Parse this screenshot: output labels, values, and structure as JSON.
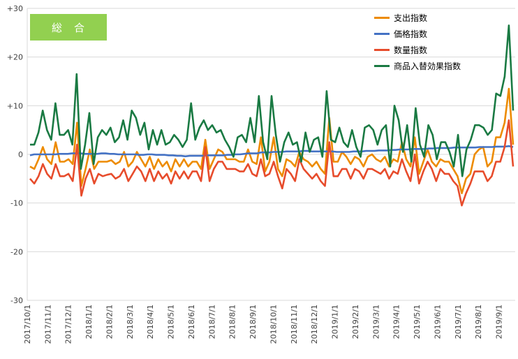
{
  "chart_data": {
    "type": "line",
    "title": "総　合",
    "ylim": [
      -30,
      30
    ],
    "yticks": [
      30,
      20,
      10,
      0,
      -10,
      -20,
      -30
    ],
    "ytick_labels": [
      "+30",
      "+20",
      "+10",
      "0",
      "-10",
      "-20",
      "-30"
    ],
    "xtick_labels": [
      "2017/10/1",
      "2017/11/1",
      "2017/12/1",
      "2018/1/1",
      "2018/2/1",
      "2018/3/1",
      "2018/4/1",
      "2018/5/1",
      "2018/6/1",
      "2018/7/1",
      "2018/8/1",
      "2018/9/1",
      "2018/10/1",
      "2018/11/1",
      "2018/12/1",
      "2019/1/1",
      "2019/2/1",
      "2019/3/1",
      "2019/4/1",
      "2019/5/1",
      "2019/6/1",
      "2019/7/1",
      "2019/8/1",
      "2019/9/1"
    ],
    "grid": "horizontal",
    "legend_position": "top-right",
    "series": [
      {
        "name": "支出指数",
        "color": "#ed8b00",
        "values": [
          -2.5,
          -3,
          -1,
          1.5,
          -1,
          -2,
          2.5,
          -1.5,
          -1.5,
          -1,
          -2,
          6.5,
          -6.5,
          -3,
          1,
          -3,
          -1.5,
          -1.5,
          -1.5,
          -1.2,
          -2,
          -1.5,
          0.5,
          -2.5,
          -1.5,
          0.5,
          -1,
          -2.5,
          -0.5,
          -3,
          -1,
          -2.5,
          -1.5,
          -3.5,
          -1,
          -2.5,
          -1,
          -2.5,
          -1.5,
          -1.5,
          -3,
          3,
          -3,
          -1,
          1,
          0.5,
          -1,
          -1,
          -1,
          -1.5,
          -1.5,
          1,
          -1.5,
          -2,
          3.5,
          -3.5,
          -1.5,
          3.5,
          -3,
          -4.5,
          -1,
          -1.5,
          -2.5,
          0.5,
          -1,
          -1.5,
          -2.5,
          -1.5,
          -3,
          -4,
          7.5,
          -1.5,
          -1.5,
          0.5,
          -0.5,
          -2,
          -0.5,
          -1,
          -2.5,
          -0.5,
          0,
          -1,
          -1.5,
          -0.5,
          -2.5,
          -1,
          -1.5,
          2.5,
          -1,
          -2.5,
          3.5,
          -4,
          -1.5,
          1,
          -1.5,
          -2.5,
          -1,
          -1.5,
          -1.5,
          -3,
          -4.5,
          -8,
          -5,
          -4,
          0,
          1,
          1.5,
          -2.5,
          -1.5,
          3.5,
          3.5,
          6.5,
          13.5,
          2
        ]
      },
      {
        "name": "価格指数",
        "color": "#4472c4",
        "values": [
          -0.2,
          0,
          0,
          0,
          0,
          0,
          0,
          0.1,
          0.1,
          0.1,
          0.2,
          0.2,
          0.2,
          0.1,
          0.1,
          0.1,
          0.1,
          0.2,
          0.2,
          0.1,
          0.1,
          0,
          0,
          0,
          0,
          0,
          -0.1,
          -0.1,
          0,
          0,
          -0.1,
          -0.1,
          -0.1,
          -0.2,
          -0.2,
          -0.3,
          -0.3,
          -0.4,
          -0.3,
          -0.3,
          -0.3,
          -0.3,
          -0.2,
          -0.2,
          -0.2,
          -0.2,
          -0.2,
          -0.1,
          -0.1,
          0,
          0,
          0.1,
          0.2,
          0.2,
          0.2,
          0.4,
          0.4,
          0.4,
          0.5,
          0.5,
          0.5,
          0.6,
          0.6,
          0.6,
          0.6,
          0.7,
          0.7,
          0.6,
          0.6,
          0.6,
          0.6,
          0.6,
          0.6,
          0.5,
          0.5,
          0.5,
          0.5,
          0.6,
          0.6,
          0.6,
          0.7,
          0.7,
          0.7,
          0.8,
          0.8,
          0.8,
          0.9,
          0.9,
          1,
          1,
          1,
          1.1,
          1.1,
          1.1,
          1.1,
          1.2,
          1.2,
          1.3,
          1.3,
          1.3,
          1.3,
          1.4,
          1.4,
          1.4,
          1.4,
          1.4,
          1.4,
          1.5,
          1.5,
          1.5,
          1.5,
          1.6,
          1.6,
          1.6,
          1.7,
          1.5
        ]
      },
      {
        "name": "数量指数",
        "color": "#e74c2c",
        "values": [
          -5,
          -6,
          -4.5,
          -2,
          -4,
          -5,
          -2,
          -4.5,
          -4.5,
          -4,
          -5.5,
          2,
          -8.5,
          -5,
          -3,
          -6,
          -4,
          -4.5,
          -4.2,
          -4,
          -5,
          -4.5,
          -3,
          -5.5,
          -4,
          -2.5,
          -3.5,
          -5.5,
          -3,
          -5.5,
          -3.5,
          -5,
          -4,
          -6,
          -3.5,
          -5,
          -3.5,
          -5,
          -3.5,
          -3.5,
          -5.5,
          1.5,
          -5.5,
          -3,
          -1.5,
          -1.5,
          -3,
          -3,
          -3,
          -3.5,
          -3.5,
          -2,
          -4,
          -4.5,
          -1,
          -4.5,
          -4,
          -1.5,
          -4.5,
          -7,
          -3,
          -4,
          -5.5,
          -1,
          -3,
          -4,
          -5,
          -4,
          -5.5,
          -6.5,
          2.5,
          -4.5,
          -4.5,
          -3,
          -3,
          -5,
          -3,
          -3.5,
          -5,
          -3,
          -3,
          -3.5,
          -4,
          -3,
          -5,
          -3.5,
          -4,
          -1,
          -3.5,
          -5.5,
          0,
          -6,
          -3.5,
          -1.5,
          -3,
          -5.5,
          -3,
          -4,
          -4,
          -5.5,
          -6.5,
          -10.5,
          -8,
          -6,
          -3.5,
          -3.5,
          -3.5,
          -5.5,
          -4.5,
          -1.5,
          -1.5,
          1.5,
          7,
          -2.5
        ]
      },
      {
        "name": "商品入替効果指数",
        "color": "#1a7a43",
        "values": [
          2,
          2,
          4.5,
          9,
          5,
          3,
          10.5,
          4,
          4,
          5,
          2,
          16.5,
          -3,
          2,
          8.5,
          -2,
          3.5,
          5,
          4,
          5.5,
          2.5,
          3.5,
          7,
          3,
          9,
          7.5,
          4,
          6.5,
          1,
          5,
          2,
          5,
          2,
          2.5,
          4,
          3,
          1.5,
          3,
          10.5,
          3,
          5.5,
          7,
          5,
          6,
          4.5,
          5,
          3,
          1.5,
          -0.5,
          3.5,
          4,
          2.5,
          7.5,
          2.5,
          12,
          2.5,
          -1,
          12,
          4,
          -1.5,
          2.5,
          4.5,
          2,
          2.5,
          -1.5,
          4.5,
          0.5,
          3,
          3.5,
          -0.5,
          13,
          3,
          2.5,
          5.5,
          2.5,
          1.5,
          5,
          1.5,
          -0.5,
          5.5,
          6,
          5,
          2,
          5,
          6,
          -2.5,
          10,
          7,
          0.5,
          6,
          -1.5,
          9.5,
          2,
          -0.5,
          6,
          4,
          -1,
          2.5,
          2.5,
          0.5,
          -2.5,
          4,
          -4.5,
          1,
          3,
          6,
          6,
          5.5,
          4,
          5,
          12.5,
          12,
          16,
          26.5,
          9
        ]
      }
    ]
  }
}
